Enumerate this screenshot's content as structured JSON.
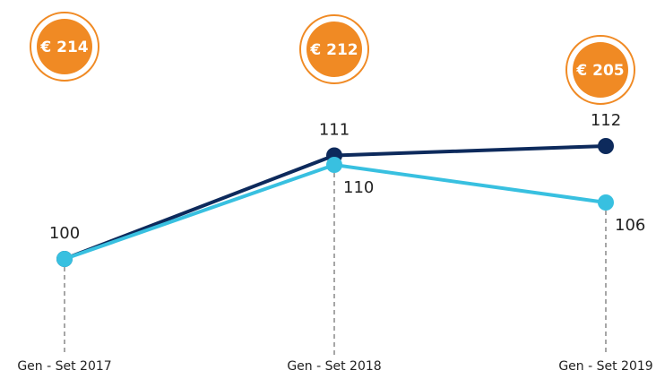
{
  "chart_data": {
    "type": "line",
    "categories": [
      "Gen - Set 2017",
      "Gen - Set 2018",
      "Gen - Set 2019"
    ],
    "series": [
      {
        "color": "#0d2a5c",
        "values": [
          100,
          111,
          112
        ]
      },
      {
        "color": "#38c0e0",
        "values": [
          100,
          110,
          106
        ]
      }
    ],
    "annotations": [
      "€ 214",
      "€ 212",
      "€ 205"
    ],
    "annotation_color": "#f08a24"
  }
}
